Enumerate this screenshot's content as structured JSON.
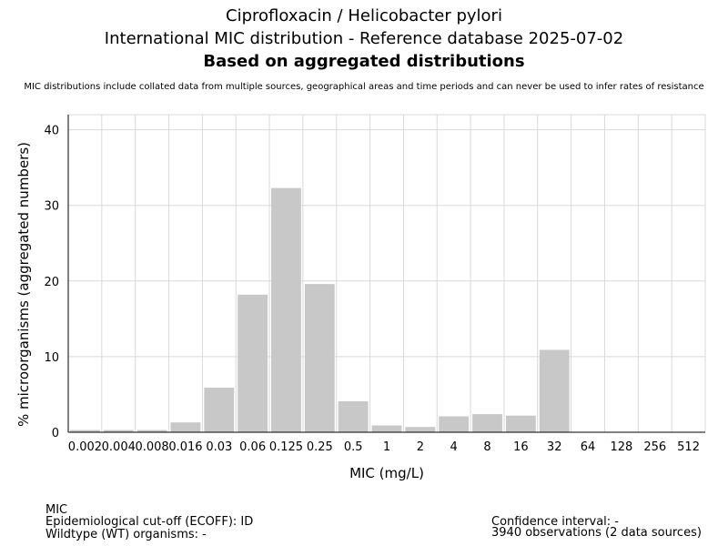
{
  "header": {
    "title_line1": "Ciprofloxacin / Helicobacter pylori",
    "title_line2": "International MIC distribution - Reference database 2025-07-02",
    "title_line3": "Based on aggregated distributions",
    "note": "MIC distributions include collated data from multiple sources, geographical areas and time periods and can never be used to infer rates of resistance"
  },
  "chart_data": {
    "type": "bar",
    "xlabel": "MIC (mg/L)",
    "ylabel": "% microorganisms (aggregated numbers)",
    "ylim": [
      0,
      42
    ],
    "yticks": [
      0,
      10,
      20,
      30,
      40
    ],
    "grid": true,
    "categories": [
      "0.002",
      "0.004",
      "0.008",
      "0.016",
      "0.03",
      "0.06",
      "0.125",
      "0.25",
      "0.5",
      "1",
      "2",
      "4",
      "8",
      "16",
      "32",
      "64",
      "128",
      "256",
      "512"
    ],
    "values": [
      0.3,
      0.3,
      0.3,
      1.3,
      5.9,
      18.2,
      32.3,
      19.6,
      4.1,
      0.9,
      0.7,
      2.1,
      2.4,
      2.2,
      10.9,
      0,
      0,
      0,
      0
    ]
  },
  "footer": {
    "line1": "MIC",
    "line2": "Epidemiological cut-off (ECOFF): ID",
    "line3": "Wildtype (WT) organisms:  -",
    "right1": "Confidence interval: -",
    "right2": "3940 observations (2 data sources)"
  },
  "colors": {
    "bar": "#c8c8c8",
    "grid": "#d9d9d9",
    "axis": "#000000"
  }
}
